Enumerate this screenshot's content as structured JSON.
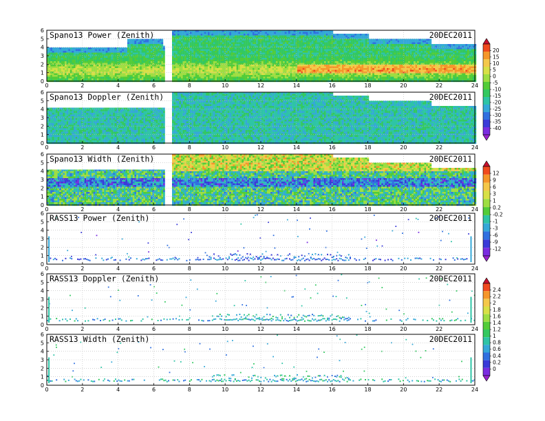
{
  "chart_data": [
    {
      "type": "heatmap",
      "title": "Spano13 Power (Zenith)",
      "date": "20DEC2011",
      "colorbar": "cb1",
      "xlim": [
        0,
        24
      ],
      "ylim": [
        0,
        6
      ],
      "x_ticks": [
        "0",
        "2",
        "4",
        "6",
        "8",
        "10",
        "12",
        "14",
        "16",
        "18",
        "20",
        "22",
        "24"
      ],
      "y_ticks": [
        "0",
        "1",
        "2",
        "3",
        "4",
        "5",
        "6"
      ],
      "grid": true
    },
    {
      "type": "heatmap",
      "title": "Spano13 Doppler (Zenith)",
      "date": "20DEC2011",
      "colorbar": "cb1",
      "xlim": [
        0,
        24
      ],
      "ylim": [
        0,
        6
      ],
      "x_ticks": [
        "0",
        "2",
        "4",
        "6",
        "8",
        "10",
        "12",
        "14",
        "16",
        "18",
        "20",
        "22",
        "24"
      ],
      "y_ticks": [
        "0",
        "1",
        "2",
        "3",
        "4",
        "5",
        "6"
      ],
      "grid": true
    },
    {
      "type": "heatmap",
      "title": "Spano13 Width (Zenith)",
      "date": "20DEC2011",
      "colorbar": "cb2",
      "xlim": [
        0,
        24
      ],
      "ylim": [
        0,
        6
      ],
      "x_ticks": [
        "0",
        "2",
        "4",
        "6",
        "8",
        "10",
        "12",
        "14",
        "16",
        "18",
        "20",
        "22",
        "24"
      ],
      "y_ticks": [
        "0",
        "1",
        "2",
        "3",
        "4",
        "5",
        "6"
      ],
      "grid": true
    },
    {
      "type": "scatter",
      "title": "RASS13 Power (Zenith)",
      "date": "20DEC2011",
      "colorbar": "cb2",
      "xlim": [
        0,
        24
      ],
      "ylim": [
        0,
        6
      ],
      "x_ticks": [
        "0",
        "2",
        "4",
        "6",
        "8",
        "10",
        "12",
        "14",
        "16",
        "18",
        "20",
        "22",
        "24"
      ],
      "y_ticks": [
        "0",
        "1",
        "2",
        "3",
        "4",
        "5",
        "6"
      ],
      "grid": true
    },
    {
      "type": "scatter",
      "title": "RASS13 Doppler (Zenith)",
      "date": "20DEC2011",
      "colorbar": "cb3",
      "xlim": [
        0,
        24
      ],
      "ylim": [
        0,
        6
      ],
      "x_ticks": [
        "0",
        "2",
        "4",
        "6",
        "8",
        "10",
        "12",
        "14",
        "16",
        "18",
        "20",
        "22",
        "24"
      ],
      "y_ticks": [
        "0",
        "1",
        "2",
        "3",
        "4",
        "5",
        "6"
      ],
      "grid": true
    },
    {
      "type": "scatter",
      "title": "RASS13 Width (Zenith)",
      "date": "20DEC2011",
      "colorbar": "cb3",
      "xlim": [
        0,
        24
      ],
      "ylim": [
        0,
        6
      ],
      "x_ticks": [
        "0",
        "2",
        "4",
        "6",
        "8",
        "10",
        "12",
        "14",
        "16",
        "18",
        "20",
        "22",
        "24"
      ],
      "y_ticks": [
        "0",
        "1",
        "2",
        "3",
        "4",
        "5",
        "6"
      ],
      "grid": true
    }
  ],
  "colorbars": {
    "cb1": {
      "labels": [
        "20",
        "15",
        "10",
        "5",
        "0",
        "-5",
        "-10",
        "-15",
        "-20",
        "-25",
        "-30",
        "-35",
        "-40"
      ],
      "colors": [
        "#c8102e",
        "#f04a1e",
        "#f5962a",
        "#f4c84a",
        "#d8e046",
        "#9ede42",
        "#52cc38",
        "#33c860",
        "#2ec4a6",
        "#35a8d8",
        "#3070e0",
        "#3a3ad8",
        "#7a2ce0",
        "#9a22d0"
      ]
    },
    "cb2": {
      "labels": [
        "12",
        "9",
        "6",
        "3",
        "1",
        "0.2",
        "-0.2",
        "-1",
        "-3",
        "-6",
        "-9",
        "-12"
      ],
      "colors": [
        "#c8102e",
        "#f04a1e",
        "#f5962a",
        "#f4c84a",
        "#d8e046",
        "#9ede42",
        "#52cc38",
        "#2ec4a6",
        "#35a8d8",
        "#3070e0",
        "#3a3ad8",
        "#7a2ce0",
        "#9a22d0"
      ]
    },
    "cb3": {
      "labels": [
        "2.4",
        "2.2",
        "2",
        "1.8",
        "1.6",
        "1.4",
        "1.2",
        "1",
        "0.8",
        "0.6",
        "0.4",
        "0.2",
        "0"
      ],
      "colors": [
        "#c8102e",
        "#f04a1e",
        "#f5962a",
        "#f4c84a",
        "#d8e046",
        "#9ede42",
        "#52cc38",
        "#33c860",
        "#2ec4a6",
        "#35a8d8",
        "#3070e0",
        "#3a3ad8",
        "#7a2ce0",
        "#9a22d0"
      ]
    }
  }
}
